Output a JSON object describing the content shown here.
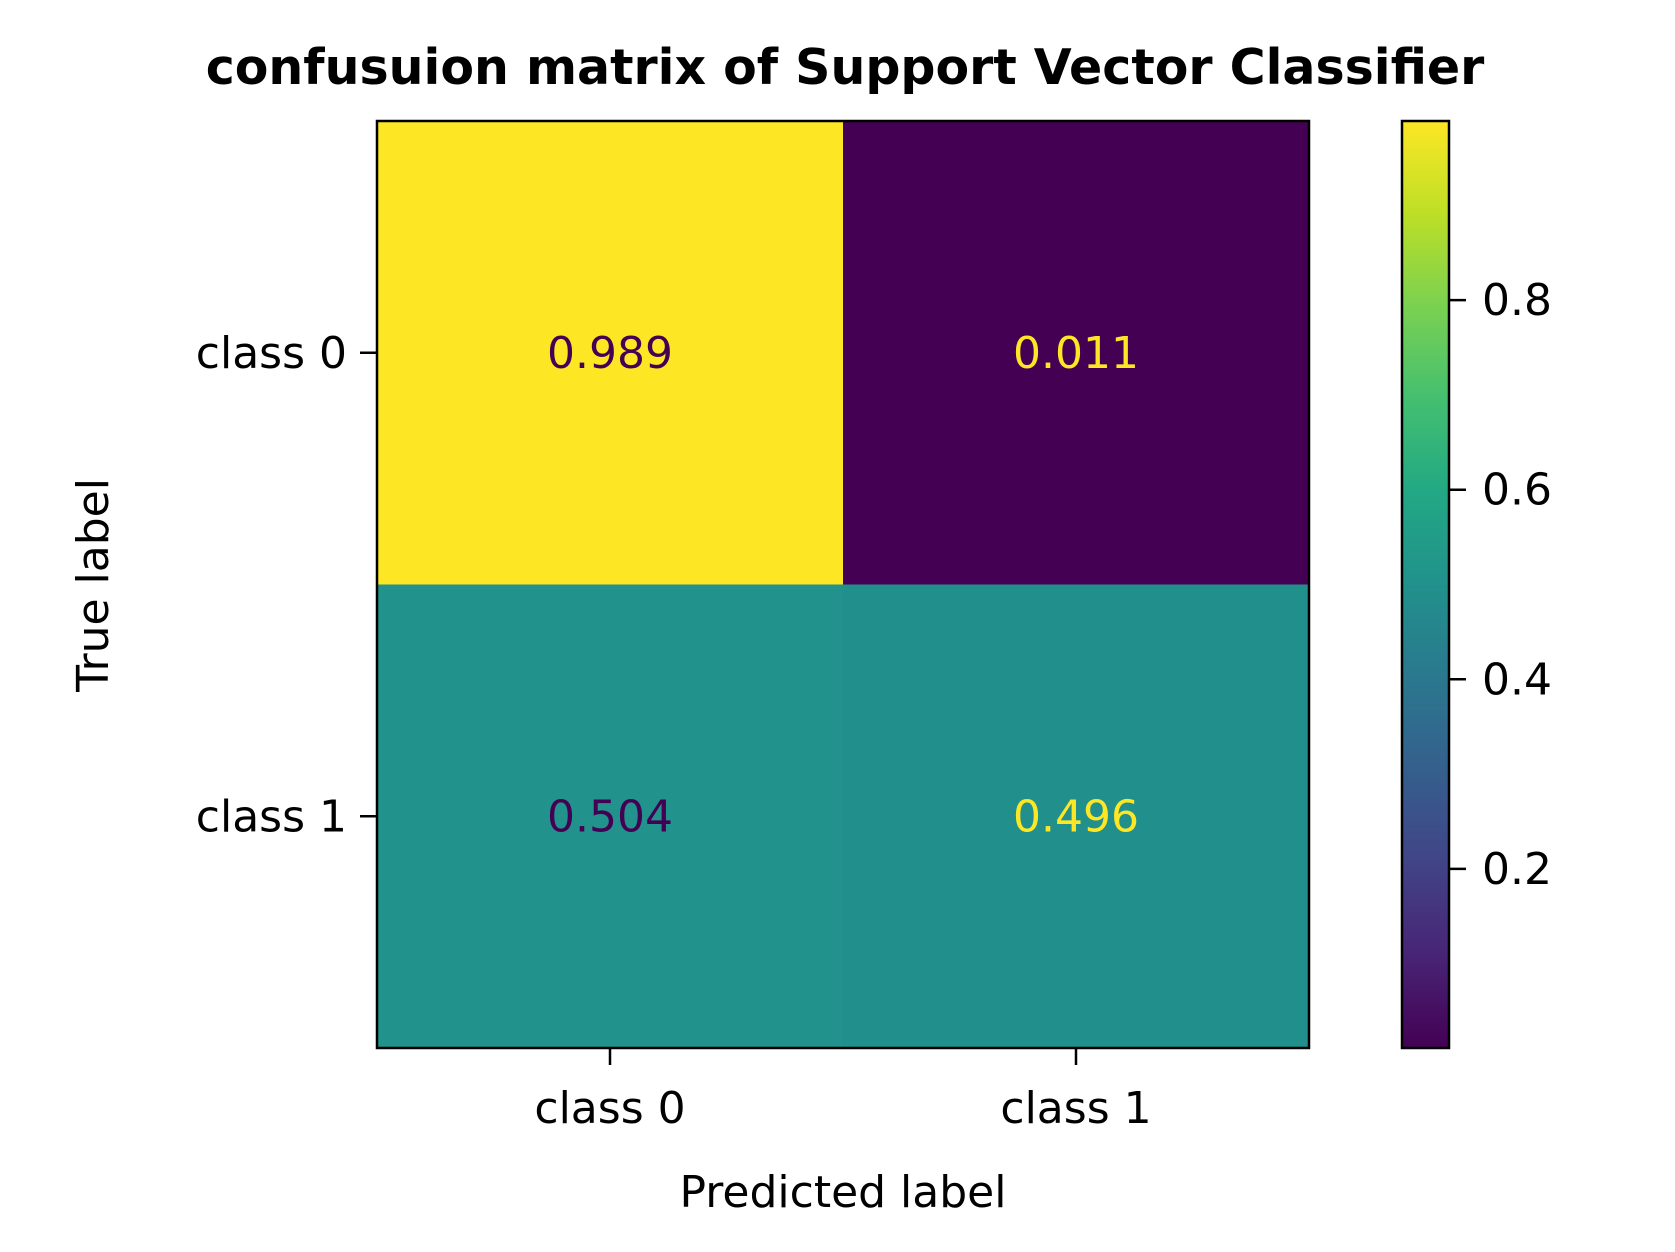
{
  "chart_data": {
    "type": "heatmap",
    "title": "confusuion matrix of Support Vector Classifier",
    "xlabel": "Predicted label",
    "ylabel": "True label",
    "x_categories": [
      "class 0",
      "class 1"
    ],
    "y_categories": [
      "class 0",
      "class 1"
    ],
    "values": [
      [
        0.989,
        0.011
      ],
      [
        0.504,
        0.496
      ]
    ],
    "value_labels": [
      [
        "0.989",
        "0.011"
      ],
      [
        "0.504",
        "0.496"
      ]
    ],
    "colormap": "viridis",
    "value_range": [
      0.011,
      0.989
    ],
    "colorbar": {
      "ticks": [
        0.2,
        0.4,
        0.6,
        0.8
      ],
      "tick_labels": [
        "0.2",
        "0.4",
        "0.6",
        "0.8"
      ],
      "position": "right"
    },
    "grid": false
  }
}
